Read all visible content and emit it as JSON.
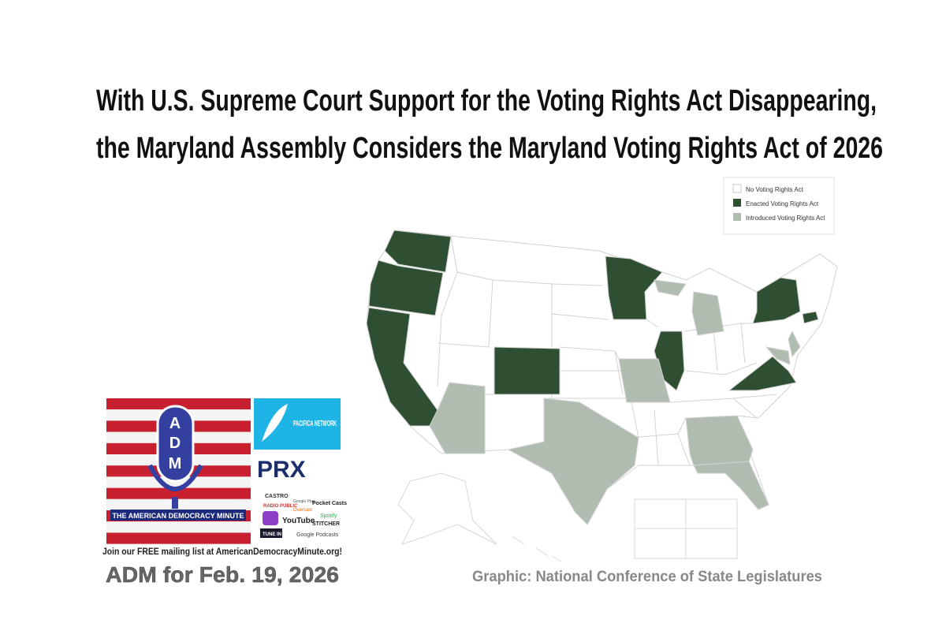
{
  "header": {
    "title_lines": [
      "With U.S. Supreme Court Support for the Voting Rights Act Disappearing,",
      "the Maryland Assembly Considers the Maryland Voting Rights Act of 2026"
    ]
  },
  "legend": {
    "items": [
      {
        "label": "No Voting Rights Act",
        "color": "#ffffff"
      },
      {
        "label": "Enacted Voting Rights Act",
        "color": "#2f4f33"
      },
      {
        "label": "Introduced Voting Rights Act",
        "color": "#b1bcb0"
      }
    ]
  },
  "logo": {
    "letters": [
      "A",
      "D",
      "M"
    ],
    "banner": "THE AMERICAN DEMOCRACY MINUTE",
    "partners": [
      "PACIFICA NETWORK",
      "PRX"
    ],
    "apps": [
      "CASTRO",
      "Google Play",
      "Pocket Casts",
      "RADIO PUBLIC",
      "Overcast",
      "Spotify",
      "YouTube",
      "STITCHER",
      "TUNE IN",
      "Google Podcasts"
    ]
  },
  "mailing": "Join our FREE mailing list at AmericanDemocracyMinute.org!",
  "episode": "ADM for Feb. 19, 2026",
  "credit": "Graphic: National Conference of State Legislatures"
}
